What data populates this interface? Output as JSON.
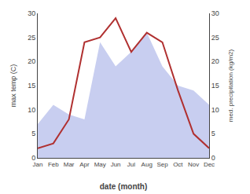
{
  "chart_data": {
    "type": "line",
    "categories": [
      "Jan",
      "Feb",
      "Mar",
      "Apr",
      "May",
      "Jun",
      "Jul",
      "Aug",
      "Sep",
      "Oct",
      "Nov",
      "Dec"
    ],
    "series": [
      {
        "type": "area",
        "axis": "y2",
        "color": "#c8cef0",
        "values": [
          7,
          11,
          9,
          8,
          24,
          19,
          22,
          26,
          19,
          15,
          14,
          11
        ]
      },
      {
        "type": "line",
        "color": "#b03030",
        "values": [
          2,
          3,
          8,
          24,
          25,
          29,
          22,
          26,
          24,
          14,
          5,
          2
        ]
      }
    ],
    "xlabel": "date (month)",
    "ylabel": "max temp (C)",
    "y2label": "med. precipitation (kg/m2)",
    "ylim": [
      0,
      30
    ],
    "yticks": [
      0,
      5,
      10,
      15,
      20,
      25,
      30
    ],
    "y2lim": [
      0,
      30
    ],
    "y2ticks": [
      0,
      5,
      10,
      15,
      20,
      25,
      30
    ],
    "grid": false
  }
}
